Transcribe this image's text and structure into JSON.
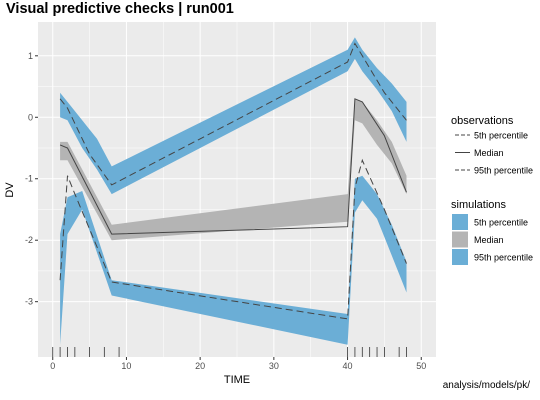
{
  "title": "Visual predictive checks | run001",
  "caption": "analysis/models/pk/",
  "colors": {
    "panel_bg": "#ebebeb",
    "grid": "#ffffff",
    "band_outer": "#6baed6",
    "band_median": "#b4b4b4",
    "obs_line": "#444444"
  },
  "chart_data": {
    "type": "line",
    "xlabel": "TIME",
    "ylabel": "DV",
    "xlim": [
      -2,
      52
    ],
    "ylim": [
      -3.9,
      1.55
    ],
    "xticks": [
      0,
      10,
      20,
      30,
      40,
      50
    ],
    "yticks": [
      1,
      0,
      -1,
      -2,
      -3
    ],
    "grid": true,
    "legend_position": "right",
    "obs_times": [
      0,
      1,
      2,
      3,
      5,
      7,
      9,
      40,
      41,
      42,
      43,
      44,
      45,
      47,
      48
    ],
    "legend": {
      "observations_title": "observations",
      "observations": [
        "5th percentile",
        "Median",
        "95th percentile"
      ],
      "simulations_title": "simulations",
      "simulations": [
        "5th percentile",
        "Median",
        "95th percentile"
      ]
    },
    "simulations": [
      {
        "name": "95th percentile",
        "x": [
          1,
          2,
          4,
          6,
          8,
          40,
          41,
          42,
          44,
          46,
          48
        ],
        "upper": [
          0.4,
          0.25,
          -0.05,
          -0.35,
          -0.8,
          1.1,
          1.3,
          1.1,
          0.8,
          0.55,
          0.25
        ],
        "lower": [
          0.0,
          -0.05,
          -0.5,
          -0.85,
          -1.25,
          0.75,
          0.95,
          0.75,
          0.45,
          0.1,
          -0.4
        ]
      },
      {
        "name": "Median",
        "x": [
          1,
          2,
          8,
          40,
          41,
          42,
          44,
          46,
          48
        ],
        "upper": [
          -0.4,
          -0.4,
          -1.75,
          -1.25,
          0.3,
          0.25,
          -0.05,
          -0.4,
          -0.95
        ],
        "lower": [
          -0.7,
          -0.7,
          -2.0,
          -1.7,
          -0.05,
          -0.1,
          -0.45,
          -0.75,
          -1.25
        ]
      },
      {
        "name": "5th percentile",
        "x": [
          1,
          2,
          4,
          8,
          40,
          41,
          42,
          44,
          46,
          48
        ],
        "upper": [
          -1.9,
          -1.3,
          -1.2,
          -2.65,
          -3.2,
          -1.0,
          -0.95,
          -1.25,
          -1.75,
          -2.35
        ],
        "lower": [
          -3.7,
          -1.9,
          -1.5,
          -2.9,
          -3.7,
          -1.55,
          -1.35,
          -1.65,
          -2.25,
          -2.85
        ]
      }
    ],
    "observations": [
      {
        "name": "95th percentile",
        "x": [
          1,
          2,
          5,
          8,
          40,
          41,
          42,
          45,
          48
        ],
        "y": [
          0.3,
          0.15,
          -0.6,
          -1.1,
          0.9,
          1.2,
          1.0,
          0.4,
          -0.05
        ]
      },
      {
        "name": "Median",
        "x": [
          1,
          2,
          8,
          40,
          41,
          42,
          45,
          48
        ],
        "y": [
          -0.45,
          -0.5,
          -1.9,
          -1.78,
          0.3,
          0.25,
          -0.3,
          -1.22
        ]
      },
      {
        "name": "5th percentile",
        "x": [
          1,
          2,
          3,
          8,
          40,
          41,
          42,
          45,
          48
        ],
        "y": [
          -2.65,
          -0.95,
          -1.25,
          -2.68,
          -3.28,
          -1.15,
          -0.7,
          -1.5,
          -2.38
        ]
      }
    ]
  }
}
